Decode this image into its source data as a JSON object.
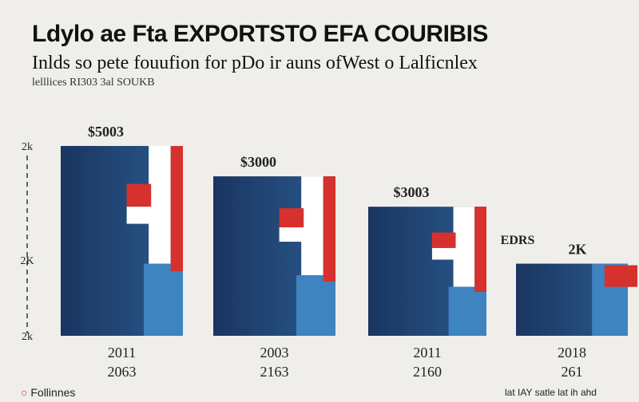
{
  "header": {
    "title": "Ldylo ae Fta EXPORTSTO EFA COURIBIS",
    "subtitle": "Inlds so pete fouufion for pDo ir auns ofWest o Lalficnlex",
    "note": "lelllices RI303 3al SOUKB"
  },
  "footer": {
    "source": "Follinnes",
    "credit": "lat IAY satle lat ih ahd"
  },
  "colors": {
    "navy": "#1f3f6e",
    "blue": "#3d84c1",
    "red": "#d6312d",
    "white": "#ffffff",
    "background": "#efeeea"
  },
  "chart_data": {
    "type": "bar",
    "title": "Ldylo ae Fta EXPORTSTO EFA COURIBIS",
    "categories": [
      "2011",
      "2003",
      "2011",
      "2018"
    ],
    "category_sublabels": [
      "2063",
      "2163",
      "2160",
      "261"
    ],
    "values": [
      100,
      84,
      68,
      38
    ],
    "data_labels": [
      "$5003",
      "$3000",
      "$3003",
      "2K"
    ],
    "extra_label": "EDRS",
    "y_tick_labels": [
      "2k",
      "2K",
      "2k"
    ],
    "y_ticks": [
      100,
      40,
      0
    ],
    "ylim": [
      0,
      100
    ],
    "grid": false,
    "legend": "none"
  }
}
